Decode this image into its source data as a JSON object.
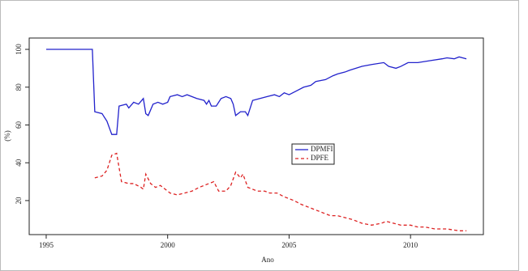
{
  "chart_data": {
    "type": "line",
    "xlabel": "Ano",
    "ylabel": "(%)",
    "xlim": [
      1994.3,
      2013.0
    ],
    "xticks": [
      1995,
      2000,
      2005,
      2010
    ],
    "ylim": [
      2,
      106
    ],
    "yticks": [
      20,
      40,
      60,
      80,
      100
    ],
    "legend": "center",
    "series": [
      {
        "name": "DPMFI",
        "color": "#2222cc",
        "linestyle": "solid",
        "x": [
          1995,
          1996.9,
          1997.0,
          1997.3,
          1997.5,
          1997.7,
          1997.9,
          1998.0,
          1998.3,
          1998.4,
          1998.6,
          1998.8,
          1999.0,
          1999.1,
          1999.2,
          1999.4,
          1999.6,
          1999.8,
          2000.0,
          2000.1,
          2000.4,
          2000.6,
          2000.8,
          2001.2,
          2001.5,
          2001.6,
          2001.7,
          2001.8,
          2002.0,
          2002.2,
          2002.4,
          2002.6,
          2002.7,
          2002.8,
          2003.0,
          2003.2,
          2003.3,
          2003.5,
          2003.8,
          2004.1,
          2004.4,
          2004.6,
          2004.8,
          2005.0,
          2005.3,
          2005.6,
          2005.9,
          2006.1,
          2006.5,
          2006.8,
          2007.0,
          2007.3,
          2007.5,
          2008.0,
          2008.4,
          2008.9,
          2009.1,
          2009.4,
          2009.6,
          2009.9,
          2010.3,
          2010.8,
          2011.3,
          2011.5,
          2011.8,
          2012.0,
          2012.3
        ],
        "values": [
          100,
          100,
          67,
          66,
          62,
          55,
          55,
          70,
          71,
          69,
          72,
          71,
          74,
          66,
          65,
          71,
          72,
          71,
          72,
          75,
          76,
          75,
          76,
          74,
          73,
          71,
          73,
          70,
          70,
          74,
          75,
          74,
          71,
          65,
          67,
          67,
          65,
          73,
          74,
          75,
          76,
          75,
          77,
          76,
          78,
          80,
          81,
          83,
          84,
          86,
          87,
          88,
          89,
          91,
          92,
          93,
          91,
          90,
          91,
          93,
          93,
          94,
          95,
          95.5,
          95,
          96,
          95
        ]
      },
      {
        "name": "DPFE",
        "color": "#dd2222",
        "linestyle": "dashed",
        "x": [
          1997.0,
          1997.3,
          1997.5,
          1997.7,
          1997.9,
          1998.1,
          1998.4,
          1998.6,
          1998.9,
          1999.0,
          1999.1,
          1999.3,
          1999.5,
          1999.7,
          1999.9,
          2000.1,
          2000.4,
          2000.7,
          2001.0,
          2001.3,
          2001.5,
          2001.7,
          2001.9,
          2002.1,
          2002.4,
          2002.6,
          2002.8,
          2003.0,
          2003.1,
          2003.3,
          2003.7,
          2004.0,
          2004.2,
          2004.5,
          2004.8,
          2005.2,
          2005.5,
          2005.9,
          2006.3,
          2006.7,
          2007.0,
          2007.3,
          2007.6,
          2008.0,
          2008.4,
          2008.8,
          2009.0,
          2009.3,
          2009.6,
          2010.0,
          2010.3,
          2010.6,
          2011.0,
          2011.5,
          2012.0,
          2012.3
        ],
        "values": [
          32,
          33,
          36,
          44,
          45,
          30,
          29,
          29,
          27,
          26,
          34,
          29,
          27,
          28,
          26,
          24,
          23,
          24,
          25,
          27,
          28,
          29,
          30,
          25,
          25,
          28,
          35,
          32,
          34,
          27,
          25,
          25,
          24,
          24,
          22,
          20,
          18,
          16,
          14,
          12,
          12,
          11,
          10,
          8,
          7,
          8,
          9,
          8,
          7,
          7,
          6,
          6,
          5,
          5,
          4,
          4
        ]
      }
    ]
  }
}
